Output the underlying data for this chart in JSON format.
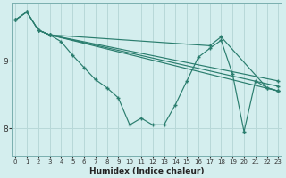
{
  "xlabel": "Humidex (Indice chaleur)",
  "bg_color": "#d4eeee",
  "line_color": "#2a7d6e",
  "grid_color": "#b8d8d8",
  "yticks": [
    8,
    9
  ],
  "xticks": [
    0,
    1,
    2,
    3,
    4,
    5,
    6,
    7,
    8,
    9,
    10,
    11,
    12,
    13,
    14,
    15,
    16,
    17,
    18,
    19,
    20,
    21,
    22,
    23
  ],
  "xlim": [
    -0.3,
    23.3
  ],
  "ylim": [
    7.6,
    9.85
  ],
  "lines": [
    {
      "x": [
        0,
        1,
        2,
        3,
        4,
        5,
        6,
        7,
        8,
        9,
        10,
        11,
        12,
        13,
        14,
        15,
        16,
        17,
        18,
        19,
        20,
        21,
        22,
        23
      ],
      "y": [
        9.6,
        9.72,
        9.45,
        9.38,
        9.28,
        9.08,
        8.9,
        8.72,
        8.6,
        8.45,
        8.05,
        8.15,
        8.05,
        8.05,
        8.35,
        8.7,
        9.05,
        9.18,
        9.3,
        8.8,
        7.95,
        8.7,
        8.6,
        8.55
      ]
    },
    {
      "x": [
        0,
        1,
        2,
        3,
        23
      ],
      "y": [
        9.6,
        9.72,
        9.45,
        9.38,
        8.55
      ]
    },
    {
      "x": [
        2,
        3,
        23
      ],
      "y": [
        9.45,
        9.38,
        8.62
      ]
    },
    {
      "x": [
        2,
        3,
        23
      ],
      "y": [
        9.45,
        9.38,
        8.7
      ]
    },
    {
      "x": [
        0,
        1,
        2,
        3,
        17,
        18,
        22,
        23
      ],
      "y": [
        9.6,
        9.72,
        9.45,
        9.38,
        9.22,
        9.35,
        8.6,
        8.55
      ]
    }
  ]
}
